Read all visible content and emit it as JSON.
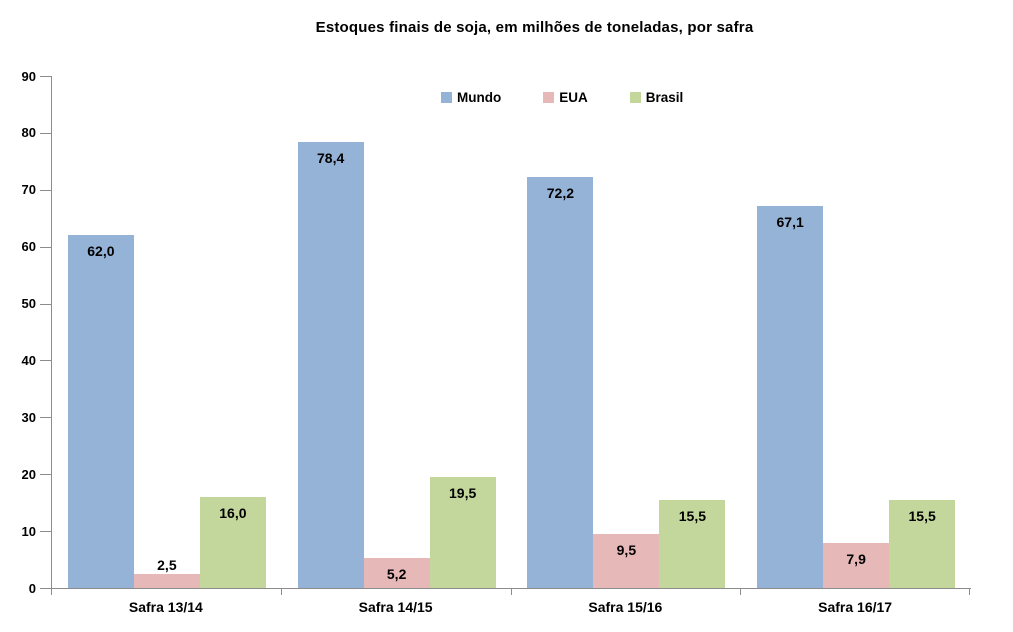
{
  "chart_data": {
    "type": "bar",
    "title": "Estoques finais de soja, em milhões de toneladas, por safra",
    "categories": [
      "Safra 13/14",
      "Safra 14/15",
      "Safra 15/16",
      "Safra 16/17"
    ],
    "series": [
      {
        "name": "Mundo",
        "color": "#95B3D7",
        "values": [
          62.0,
          78.4,
          72.2,
          67.1
        ],
        "labels": [
          "62,0",
          "78,4",
          "72,2",
          "67,1"
        ]
      },
      {
        "name": "EUA",
        "color": "#E6B9B8",
        "values": [
          2.5,
          5.2,
          9.5,
          7.9
        ],
        "labels": [
          "2,5",
          "5,2",
          "9,5",
          "7,9"
        ]
      },
      {
        "name": "Brasil",
        "color": "#C3D69B",
        "values": [
          16.0,
          19.5,
          15.5,
          15.5
        ],
        "labels": [
          "16,0",
          "19,5",
          "15,5",
          "15,5"
        ]
      }
    ],
    "ylim": [
      0,
      90
    ],
    "yticks": [
      0,
      10,
      20,
      30,
      40,
      50,
      60,
      70,
      80,
      90
    ],
    "grid": false,
    "legend_position": "top-center",
    "axis_color": "#8C8C8C",
    "text_color": "#000000",
    "background_color": "#FFFFFF"
  }
}
